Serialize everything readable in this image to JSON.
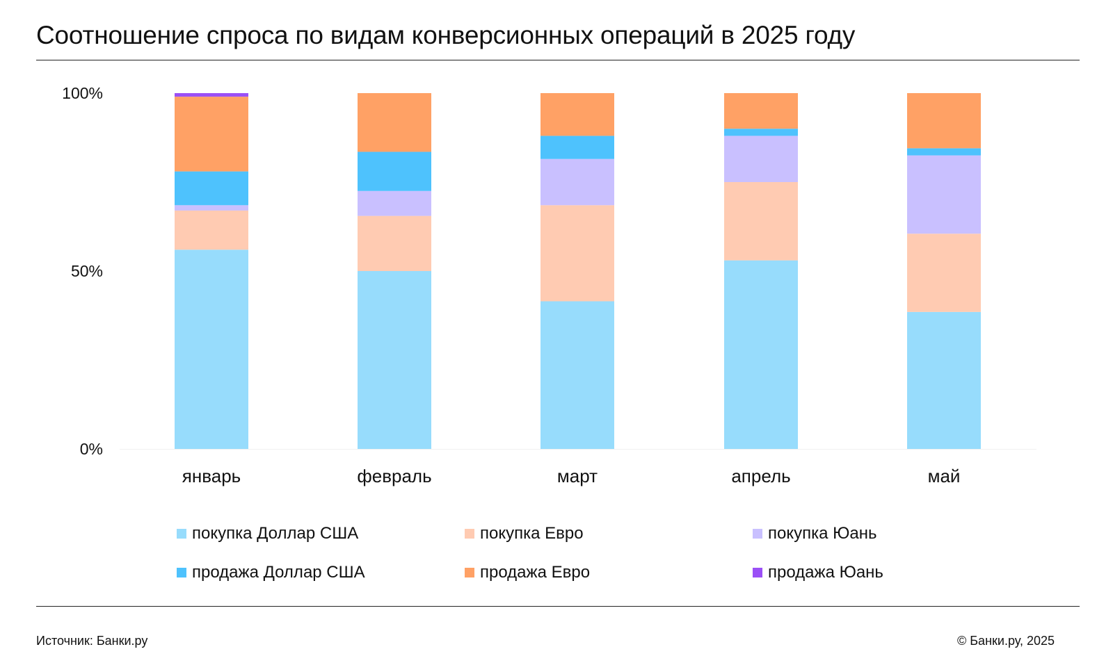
{
  "title": "Соотношение спроса по видам конверсионных операций в 2025 году",
  "footer": {
    "source": "Источник: Банки.ру",
    "copyright": "© Банки.ру, 2025"
  },
  "chart_data": {
    "type": "bar",
    "stacked": true,
    "title": "Соотношение спроса по видам конверсионных операций в 2025 году",
    "categories": [
      "январь",
      "февраль",
      "март",
      "апрель",
      "май"
    ],
    "y_ticks": [
      "0%",
      "50%",
      "100%"
    ],
    "ylim": [
      0,
      100
    ],
    "grid": false,
    "legend_position": "bottom",
    "series": [
      {
        "name": "покупка Доллар США",
        "color": "#97DCFC",
        "values": [
          56,
          50,
          41.5,
          53,
          38.5
        ]
      },
      {
        "name": "покупка Евро",
        "color": "#FFCBB2",
        "values": [
          11,
          15.5,
          27,
          22,
          22
        ]
      },
      {
        "name": "покупка Юань",
        "color": "#C9C0FF",
        "values": [
          1.5,
          7,
          13,
          13,
          22
        ]
      },
      {
        "name": "продажа Доллар США",
        "color": "#4EC2FD",
        "values": [
          9.5,
          11,
          6.5,
          2,
          2
        ]
      },
      {
        "name": "продажа Евро",
        "color": "#FFA165",
        "values": [
          21,
          16.5,
          12,
          10,
          15.5
        ]
      },
      {
        "name": "продажа Юань",
        "color": "#9B50F6",
        "values": [
          1,
          0,
          0,
          0,
          0
        ]
      }
    ]
  }
}
